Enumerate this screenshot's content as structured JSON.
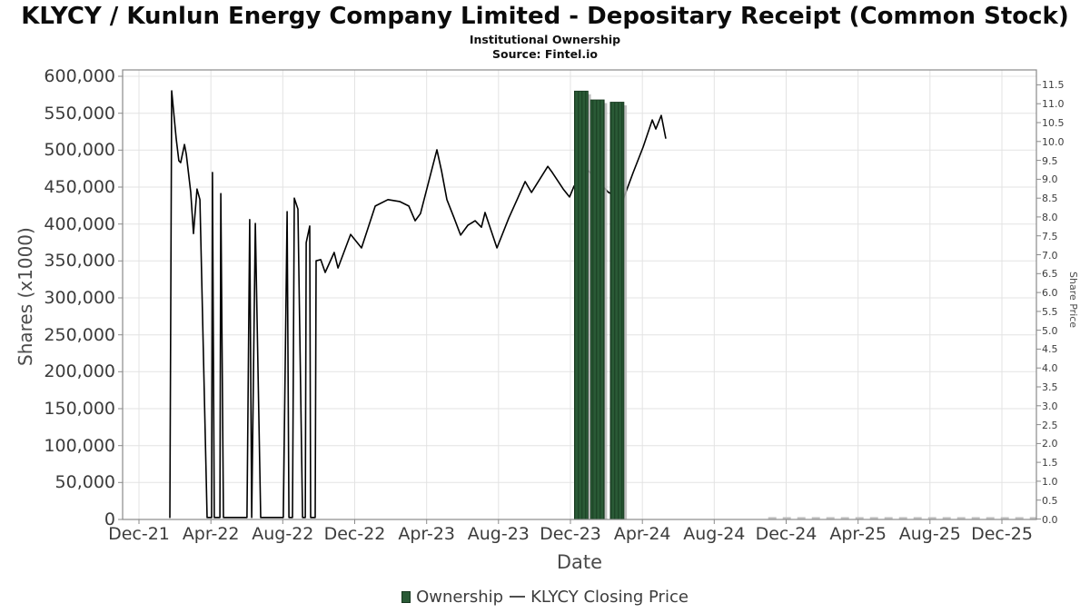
{
  "header": {
    "title": "KLYCY / Kunlun Energy Company Limited - Depositary Receipt (Common Stock)",
    "subtitle": "Institutional Ownership",
    "source": "Source: Fintel.io"
  },
  "axes": {
    "left": {
      "title": "Shares (x1000)",
      "tick_values": [
        0,
        50000,
        100000,
        150000,
        200000,
        250000,
        300000,
        350000,
        400000,
        450000,
        500000,
        550000,
        600000
      ],
      "tick_labels": [
        "0",
        "50,000",
        "100,000",
        "150,000",
        "200,000",
        "250,000",
        "300,000",
        "350,000",
        "400,000",
        "450,000",
        "500,000",
        "550,000",
        "600,000"
      ]
    },
    "right": {
      "title": "Share Price",
      "tick_values": [
        0,
        0.5,
        1.0,
        1.5,
        2.0,
        2.5,
        3.0,
        3.5,
        4.0,
        4.5,
        5.0,
        5.5,
        6.0,
        6.5,
        7.0,
        7.5,
        8.0,
        8.5,
        9.0,
        9.5,
        10.0,
        10.5,
        11.0,
        11.5
      ],
      "tick_labels": [
        "0.0",
        "0.5",
        "1.0",
        "1.5",
        "2.0",
        "2.5",
        "3.0",
        "3.5",
        "4.0",
        "4.5",
        "5.0",
        "5.5",
        "6.0",
        "6.5",
        "7.0",
        "7.5",
        "8.0",
        "8.5",
        "9.0",
        "9.5",
        "10.0",
        "10.5",
        "11.0",
        "11.5"
      ]
    },
    "x": {
      "title": "Date",
      "tick_labels": [
        "Dec-21",
        "Apr-22",
        "Aug-22",
        "Dec-22",
        "Apr-23",
        "Aug-23",
        "Dec-23",
        "Apr-24",
        "Aug-24",
        "Dec-24",
        "Apr-25",
        "Aug-25",
        "Dec-25"
      ],
      "tick_months": [
        0,
        4,
        8,
        12,
        16,
        20,
        24,
        28,
        32,
        36,
        40,
        44,
        48
      ]
    }
  },
  "legend": {
    "items": [
      {
        "label": "Ownership",
        "swatch": "green-square"
      },
      {
        "label": "KLYCY Closing Price",
        "swatch": "dash-line"
      }
    ]
  },
  "colors": {
    "bar_green": "#2a5a36",
    "bar_green_stripe": "#1d4527",
    "bar_edge": "#17371f",
    "bar_shadow": "#b5b5b5",
    "price_line": "#000000",
    "future_dashed": "#c2c2c2",
    "grid": "#e3e3e3",
    "frame": "#8a8a8a",
    "tick_mark": "#8a8a8a"
  },
  "chart_data": {
    "type": "combo",
    "x_unit": "months_after_Dec-21",
    "x_plot_range_months": [
      -0.9,
      49.9
    ],
    "left_axis": {
      "label": "Shares (x1000)",
      "ylim": [
        0,
        600000
      ],
      "grid_step": 50000,
      "grid": true
    },
    "right_axis": {
      "label": "Share Price",
      "ylim": [
        0,
        11.9
      ],
      "tick_step": 0.5,
      "grid": false
    },
    "series": [
      {
        "name": "Ownership",
        "type": "bar",
        "axis": "left",
        "bar_width_months": 0.76,
        "points": [
          [
            24.6,
            580000
          ],
          [
            25.5,
            568000
          ],
          [
            26.6,
            565000
          ]
        ]
      },
      {
        "name": "KLYCY Closing Price",
        "type": "line",
        "axis": "right",
        "points": [
          [
            1.72,
            0.04
          ],
          [
            1.82,
            11.34
          ],
          [
            2.07,
            10.07
          ],
          [
            2.22,
            9.49
          ],
          [
            2.32,
            9.44
          ],
          [
            2.53,
            9.92
          ],
          [
            2.63,
            9.66
          ],
          [
            2.88,
            8.65
          ],
          [
            3.03,
            7.56
          ],
          [
            3.23,
            8.74
          ],
          [
            3.39,
            8.46
          ],
          [
            3.79,
            0.04
          ],
          [
            4.04,
            0.04
          ],
          [
            4.09,
            9.18
          ],
          [
            4.19,
            0.04
          ],
          [
            4.5,
            0.04
          ],
          [
            4.55,
            8.62
          ],
          [
            4.7,
            0.04
          ],
          [
            6.01,
            0.04
          ],
          [
            6.16,
            7.93
          ],
          [
            6.27,
            0.04
          ],
          [
            6.47,
            7.83
          ],
          [
            6.77,
            0.04
          ],
          [
            8.03,
            0.04
          ],
          [
            8.24,
            8.14
          ],
          [
            8.34,
            0.04
          ],
          [
            8.54,
            0.04
          ],
          [
            8.64,
            8.5
          ],
          [
            8.84,
            8.21
          ],
          [
            9.1,
            0.04
          ],
          [
            9.25,
            0.04
          ],
          [
            9.3,
            7.32
          ],
          [
            9.5,
            7.76
          ],
          [
            9.55,
            0.04
          ],
          [
            9.8,
            0.04
          ],
          [
            9.85,
            6.84
          ],
          [
            10.11,
            6.87
          ],
          [
            10.36,
            6.53
          ],
          [
            10.86,
            7.06
          ],
          [
            11.07,
            6.65
          ],
          [
            11.77,
            7.54
          ],
          [
            12.38,
            7.18
          ],
          [
            13.14,
            8.29
          ],
          [
            13.85,
            8.46
          ],
          [
            14.5,
            8.41
          ],
          [
            15.01,
            8.29
          ],
          [
            15.36,
            7.9
          ],
          [
            15.66,
            8.09
          ],
          [
            16.57,
            9.78
          ],
          [
            16.83,
            9.22
          ],
          [
            17.13,
            8.46
          ],
          [
            17.53,
            7.97
          ],
          [
            17.89,
            7.52
          ],
          [
            18.29,
            7.78
          ],
          [
            18.7,
            7.9
          ],
          [
            19.05,
            7.73
          ],
          [
            19.25,
            8.12
          ],
          [
            19.91,
            7.18
          ],
          [
            20.57,
            7.97
          ],
          [
            21.07,
            8.5
          ],
          [
            21.48,
            8.94
          ],
          [
            21.83,
            8.65
          ],
          [
            22.74,
            9.34
          ],
          [
            22.99,
            9.18
          ],
          [
            23.6,
            8.74
          ],
          [
            23.95,
            8.53
          ],
          [
            24.2,
            8.82
          ],
          [
            25.01,
            9.22
          ],
          [
            26.12,
            8.65
          ],
          [
            26.93,
            8.46
          ],
          [
            27.49,
            9.18
          ],
          [
            28.04,
            9.85
          ],
          [
            28.55,
            10.57
          ],
          [
            28.75,
            10.33
          ],
          [
            29.05,
            10.69
          ],
          [
            29.3,
            10.09
          ]
        ]
      }
    ],
    "annotations": [
      {
        "name": "future-baseline-dashed",
        "type": "line",
        "style": "dashed",
        "axis": "right",
        "points": [
          [
            35.0,
            0
          ],
          [
            49.9,
            0
          ]
        ]
      }
    ],
    "legend_position": "bottom-center"
  }
}
